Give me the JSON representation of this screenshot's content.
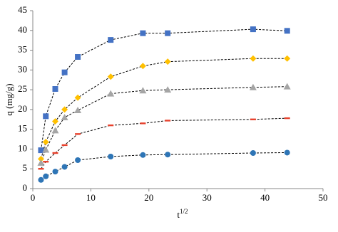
{
  "chart_data": {
    "type": "scatter",
    "x_label": {
      "base": "t",
      "superscript": "1/2"
    },
    "y_label": "q (mg/g)",
    "x": [
      1.41,
      2.24,
      3.87,
      5.48,
      7.75,
      13.42,
      18.97,
      23.24,
      37.95,
      43.82
    ],
    "series": [
      {
        "marker": "square",
        "color": "#4472c4",
        "values": [
          9.7,
          18.3,
          25.2,
          29.4,
          33.3,
          37.6,
          39.3,
          39.3,
          40.3,
          39.9
        ]
      },
      {
        "marker": "diamond",
        "color": "#ffc000",
        "values": [
          7.5,
          11.8,
          17.0,
          20.0,
          23.0,
          28.3,
          31.0,
          32.1,
          32.9,
          32.9
        ]
      },
      {
        "marker": "triangle",
        "color": "#a5a5a5",
        "values": [
          6.5,
          9.8,
          14.7,
          18.0,
          19.8,
          24.0,
          24.8,
          25.0,
          25.6,
          25.8
        ]
      },
      {
        "marker": "dash",
        "color": "#e8412c",
        "values": [
          5.0,
          6.8,
          9.0,
          11.0,
          13.8,
          16.0,
          16.5,
          17.2,
          17.5,
          17.8
        ]
      },
      {
        "marker": "circle",
        "color": "#2e75b6",
        "values": [
          2.2,
          3.1,
          4.3,
          5.5,
          7.2,
          8.1,
          8.5,
          8.6,
          9.0,
          9.1
        ]
      }
    ],
    "fit_line": {
      "color": "#000000",
      "dashed": true
    },
    "xlim": [
      0,
      50
    ],
    "xticks": [
      0,
      10,
      20,
      30,
      40,
      50
    ],
    "ylim": [
      0,
      45
    ],
    "yticks": [
      0,
      5,
      10,
      15,
      20,
      25,
      30,
      35,
      40,
      45
    ],
    "grid": false
  }
}
